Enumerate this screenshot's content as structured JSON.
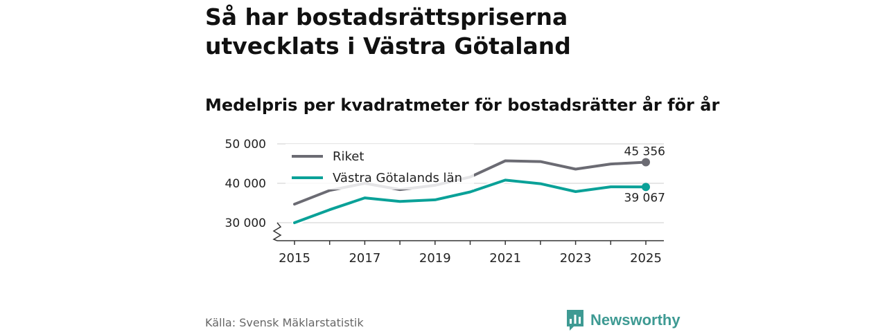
{
  "title": "Så har bostadsrättspriserna utvecklats i Västra Götaland",
  "subtitle": "Medelpris per kvadratmeter för bostadsrätter år för år",
  "source": "Källa: Svensk Mäklarstatistik",
  "brand": {
    "name": "Newsworthy",
    "icon": "bar-chart-speech-bubble-icon",
    "color": "#3e9a93"
  },
  "colors": {
    "riket": "#6b6b73",
    "vg": "#0aa198",
    "grid": "#dddddd",
    "axis": "#333333"
  },
  "chart_data": {
    "type": "line",
    "title": "Medelpris per kvadratmeter för bostadsrätter år för år",
    "xlabel": "",
    "ylabel": "",
    "x": [
      2015,
      2016,
      2017,
      2018,
      2019,
      2020,
      2021,
      2022,
      2023,
      2024,
      2025
    ],
    "xticks": [
      "2015",
      "2017",
      "2019",
      "2021",
      "2023",
      "2025"
    ],
    "yticks": [
      30000,
      40000,
      50000
    ],
    "ytick_labels": [
      "30 000",
      "40 000",
      "50 000"
    ],
    "ylim": [
      25500,
      50000
    ],
    "axis_break": true,
    "legend_position": "top-left",
    "series": [
      {
        "name": "Riket",
        "values": [
          34700,
          38200,
          40000,
          38400,
          39500,
          41600,
          45700,
          45500,
          43600,
          44900,
          45356
        ],
        "end_label": "45 356"
      },
      {
        "name": "Västra Götalands län",
        "values": [
          30000,
          33300,
          36300,
          35400,
          35800,
          37800,
          40800,
          39900,
          37900,
          39100,
          39067
        ],
        "end_label": "39 067"
      }
    ]
  }
}
